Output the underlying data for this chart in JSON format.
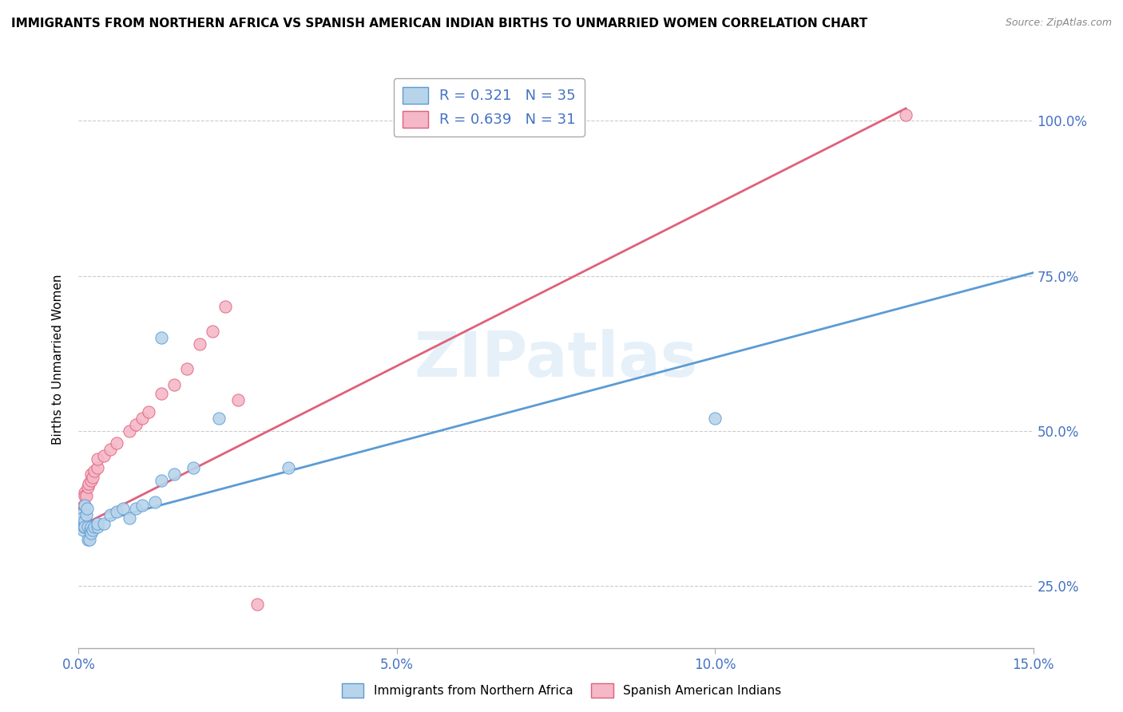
{
  "title": "IMMIGRANTS FROM NORTHERN AFRICA VS SPANISH AMERICAN INDIAN BIRTHS TO UNMARRIED WOMEN CORRELATION CHART",
  "source": "Source: ZipAtlas.com",
  "ylabel": "Births to Unmarried Women",
  "blue_R": 0.321,
  "blue_N": 35,
  "pink_R": 0.639,
  "pink_N": 31,
  "xlim": [
    0.0,
    0.15
  ],
  "ylim": [
    0.15,
    1.08
  ],
  "xticks": [
    0.0,
    0.05,
    0.1,
    0.15
  ],
  "xtick_labels": [
    "0.0%",
    "5.0%",
    "10.0%",
    "15.0%"
  ],
  "yticks": [
    0.25,
    0.5,
    0.75,
    1.0
  ],
  "ytick_labels": [
    "25.0%",
    "50.0%",
    "75.0%",
    "100.0%"
  ],
  "blue_scatter_x": [
    0.0003,
    0.0005,
    0.0006,
    0.0007,
    0.0008,
    0.001,
    0.001,
    0.001,
    0.0012,
    0.0013,
    0.0015,
    0.0015,
    0.0017,
    0.0018,
    0.002,
    0.002,
    0.0022,
    0.0025,
    0.003,
    0.003,
    0.004,
    0.005,
    0.006,
    0.007,
    0.008,
    0.009,
    0.01,
    0.012,
    0.013,
    0.015,
    0.018,
    0.022,
    0.033,
    0.1,
    0.013
  ],
  "blue_scatter_y": [
    0.365,
    0.355,
    0.36,
    0.34,
    0.345,
    0.38,
    0.355,
    0.345,
    0.365,
    0.375,
    0.325,
    0.345,
    0.325,
    0.34,
    0.335,
    0.345,
    0.34,
    0.345,
    0.345,
    0.35,
    0.35,
    0.365,
    0.37,
    0.375,
    0.36,
    0.375,
    0.38,
    0.385,
    0.42,
    0.43,
    0.44,
    0.52,
    0.44,
    0.52,
    0.65
  ],
  "pink_scatter_x": [
    0.0003,
    0.0005,
    0.0007,
    0.0008,
    0.001,
    0.001,
    0.0012,
    0.0014,
    0.0016,
    0.002,
    0.002,
    0.0022,
    0.0025,
    0.003,
    0.003,
    0.004,
    0.005,
    0.006,
    0.008,
    0.009,
    0.01,
    0.011,
    0.013,
    0.015,
    0.017,
    0.019,
    0.021,
    0.023,
    0.025,
    0.028,
    0.13
  ],
  "pink_scatter_y": [
    0.375,
    0.355,
    0.37,
    0.38,
    0.4,
    0.395,
    0.395,
    0.41,
    0.415,
    0.42,
    0.43,
    0.425,
    0.435,
    0.44,
    0.455,
    0.46,
    0.47,
    0.48,
    0.5,
    0.51,
    0.52,
    0.53,
    0.56,
    0.575,
    0.6,
    0.64,
    0.66,
    0.7,
    0.55,
    0.22,
    1.01
  ],
  "blue_line_x": [
    0.0,
    0.15
  ],
  "blue_line_y": [
    0.345,
    0.755
  ],
  "pink_line_x": [
    0.0,
    0.13
  ],
  "pink_line_y": [
    0.345,
    1.02
  ],
  "blue_scatter_color": "#b8d4ea",
  "blue_edge_color": "#5b9bd5",
  "pink_scatter_color": "#f4b8c8",
  "pink_edge_color": "#e0607a",
  "blue_line_color": "#5b9bd5",
  "pink_line_color": "#e0607a",
  "watermark": "ZIPatlas",
  "background_color": "#ffffff",
  "grid_color": "#cccccc",
  "title_color": "#000000",
  "source_color": "#888888",
  "axis_color": "#4472c4",
  "legend_label_blue": "Immigrants from Northern Africa",
  "legend_label_pink": "Spanish American Indians"
}
